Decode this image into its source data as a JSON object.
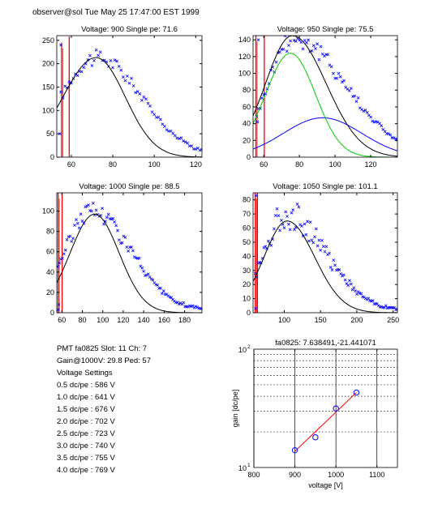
{
  "header": "observer@sol  Tue May 25 17:47:00 EST 1999",
  "colors": {
    "data": "#0000ff",
    "fit": "#000000",
    "red": "#ff0000",
    "green": "#00cc00",
    "grid": "#000000"
  },
  "chart_data": [
    {
      "type": "scatter",
      "title": "Voltage: 900 Single pe: 71.6",
      "xlim": [
        53,
        123
      ],
      "ylim": [
        0,
        260
      ],
      "xticks": [
        60,
        80,
        100,
        120
      ],
      "yticks": [
        0,
        50,
        100,
        150,
        200,
        250
      ],
      "peak": {
        "x": 72,
        "y": 213,
        "sl": 17,
        "sr": 22,
        "base": 0
      },
      "data_range": [
        55,
        123
      ],
      "data_step": 1,
      "noise": 0.08,
      "fit": {
        "mu": 72,
        "amp": 213,
        "sl": 16,
        "sr": 14
      },
      "red_spikes": [
        {
          "x": 55.3,
          "y": 245
        },
        {
          "x": 59,
          "y": 258
        }
      ],
      "green": null,
      "blue_curve": null,
      "low_points": [
        {
          "x": 55,
          "y": 240
        },
        {
          "x": 54.5,
          "y": 50
        }
      ]
    },
    {
      "type": "scatter",
      "title": "Voltage: 950 Single pe: 75.5",
      "xlim": [
        54,
        135
      ],
      "ylim": [
        0,
        145
      ],
      "xticks": [
        60,
        80,
        100,
        120
      ],
      "yticks": [
        0,
        20,
        40,
        60,
        80,
        100,
        120,
        140
      ],
      "peak": {
        "x": 76,
        "y": 142,
        "sl": 14,
        "sr": 30,
        "base": 0
      },
      "data_range": [
        56,
        135
      ],
      "data_step": 1,
      "noise": 0.09,
      "fit": {
        "mu": 76,
        "amp": 145,
        "sl": 15,
        "sr": 19
      },
      "red_spikes": [
        {
          "x": 55.6,
          "y": 145
        },
        {
          "x": 60.3,
          "y": 145
        }
      ],
      "green": {
        "mu": 75,
        "amp": 124,
        "sl": 14,
        "sr": 14
      },
      "blue_curve": {
        "mu": 93,
        "amp": 47,
        "sl": 22,
        "sr": 22
      },
      "low_points": [
        {
          "x": 57,
          "y": 140
        },
        {
          "x": 56.5,
          "y": 42
        }
      ]
    },
    {
      "type": "scatter",
      "title": "Voltage: 1000 Single pe: 88.5",
      "xlim": [
        55,
        197
      ],
      "ylim": [
        0,
        118
      ],
      "xticks": [
        60,
        80,
        100,
        120,
        140,
        160,
        180
      ],
      "yticks": [
        0,
        20,
        40,
        60,
        80,
        100
      ],
      "peak": {
        "x": 89,
        "y": 101,
        "sl": 26,
        "sr": 38,
        "base": 2
      },
      "data_range": [
        56,
        197
      ],
      "data_step": 1.5,
      "noise": 0.1,
      "fit": {
        "mu": 92,
        "amp": 97,
        "sl": 24,
        "sr": 24
      },
      "red_spikes": [
        {
          "x": 56.3,
          "y": 118
        },
        {
          "x": 60.2,
          "y": 118
        }
      ],
      "green": null,
      "blue_curve": null,
      "low_points": [
        {
          "x": 57,
          "y": 8
        },
        {
          "x": 56.3,
          "y": 3
        }
      ]
    },
    {
      "type": "scatter",
      "title": "Voltage: 1050 Single pe: 101.1",
      "xlim": [
        57,
        256
      ],
      "ylim": [
        0,
        85
      ],
      "xticks": [
        100,
        150,
        200,
        250
      ],
      "yticks": [
        0,
        10,
        20,
        30,
        40,
        50,
        60,
        70,
        80
      ],
      "peak": {
        "x": 102,
        "y": 70,
        "sl": 30,
        "sr": 55,
        "base": 1
      },
      "data_range": [
        60,
        256
      ],
      "data_step": 2,
      "noise": 0.15,
      "fit": {
        "mu": 104,
        "amp": 65,
        "sl": 32,
        "sr": 38
      },
      "red_spikes": [
        {
          "x": 60,
          "y": 85
        },
        {
          "x": 63,
          "y": 85
        }
      ],
      "green": null,
      "blue_curve": null,
      "low_points": [
        {
          "x": 61,
          "y": 83
        },
        {
          "x": 60.5,
          "y": 3
        }
      ]
    },
    {
      "type": "scatter",
      "title": "fa0825: 7.638491,-21.441071",
      "xlabel": "voltage [V]",
      "ylabel": "gain [dc/pe]",
      "xlim": [
        800,
        1150
      ],
      "ylim": [
        10,
        100
      ],
      "yscale": "log",
      "xticks": [
        800,
        900,
        1000,
        1100
      ],
      "ytick_labels": [
        "10",
        "10"
      ],
      "ytick_label_sups": [
        "1",
        "2"
      ],
      "grid": "x-solid-y-dotted",
      "points": [
        {
          "x": 900,
          "y": 14.0
        },
        {
          "x": 950,
          "y": 18.0
        },
        {
          "x": 1000,
          "y": 31.5
        },
        {
          "x": 1050,
          "y": 43.0
        }
      ],
      "fit_line": {
        "x": [
          900,
          1050
        ],
        "y": [
          13.7,
          43.0
        ]
      }
    }
  ],
  "info": {
    "lines": [
      "PMT fa0825 Slot: 11 Ch: 7",
      "Gain@1000V: 29.8  Ped: 57",
      "Voltage Settings",
      "0.5 dc/pe : 586 V",
      "1.0 dc/pe : 641 V",
      "1.5 dc/pe : 676 V",
      "2.0 dc/pe : 702 V",
      "2.5 dc/pe : 723 V",
      "3.0 dc/pe : 740 V",
      "3.5 dc/pe : 755 V",
      "4.0 dc/pe : 769 V"
    ]
  }
}
